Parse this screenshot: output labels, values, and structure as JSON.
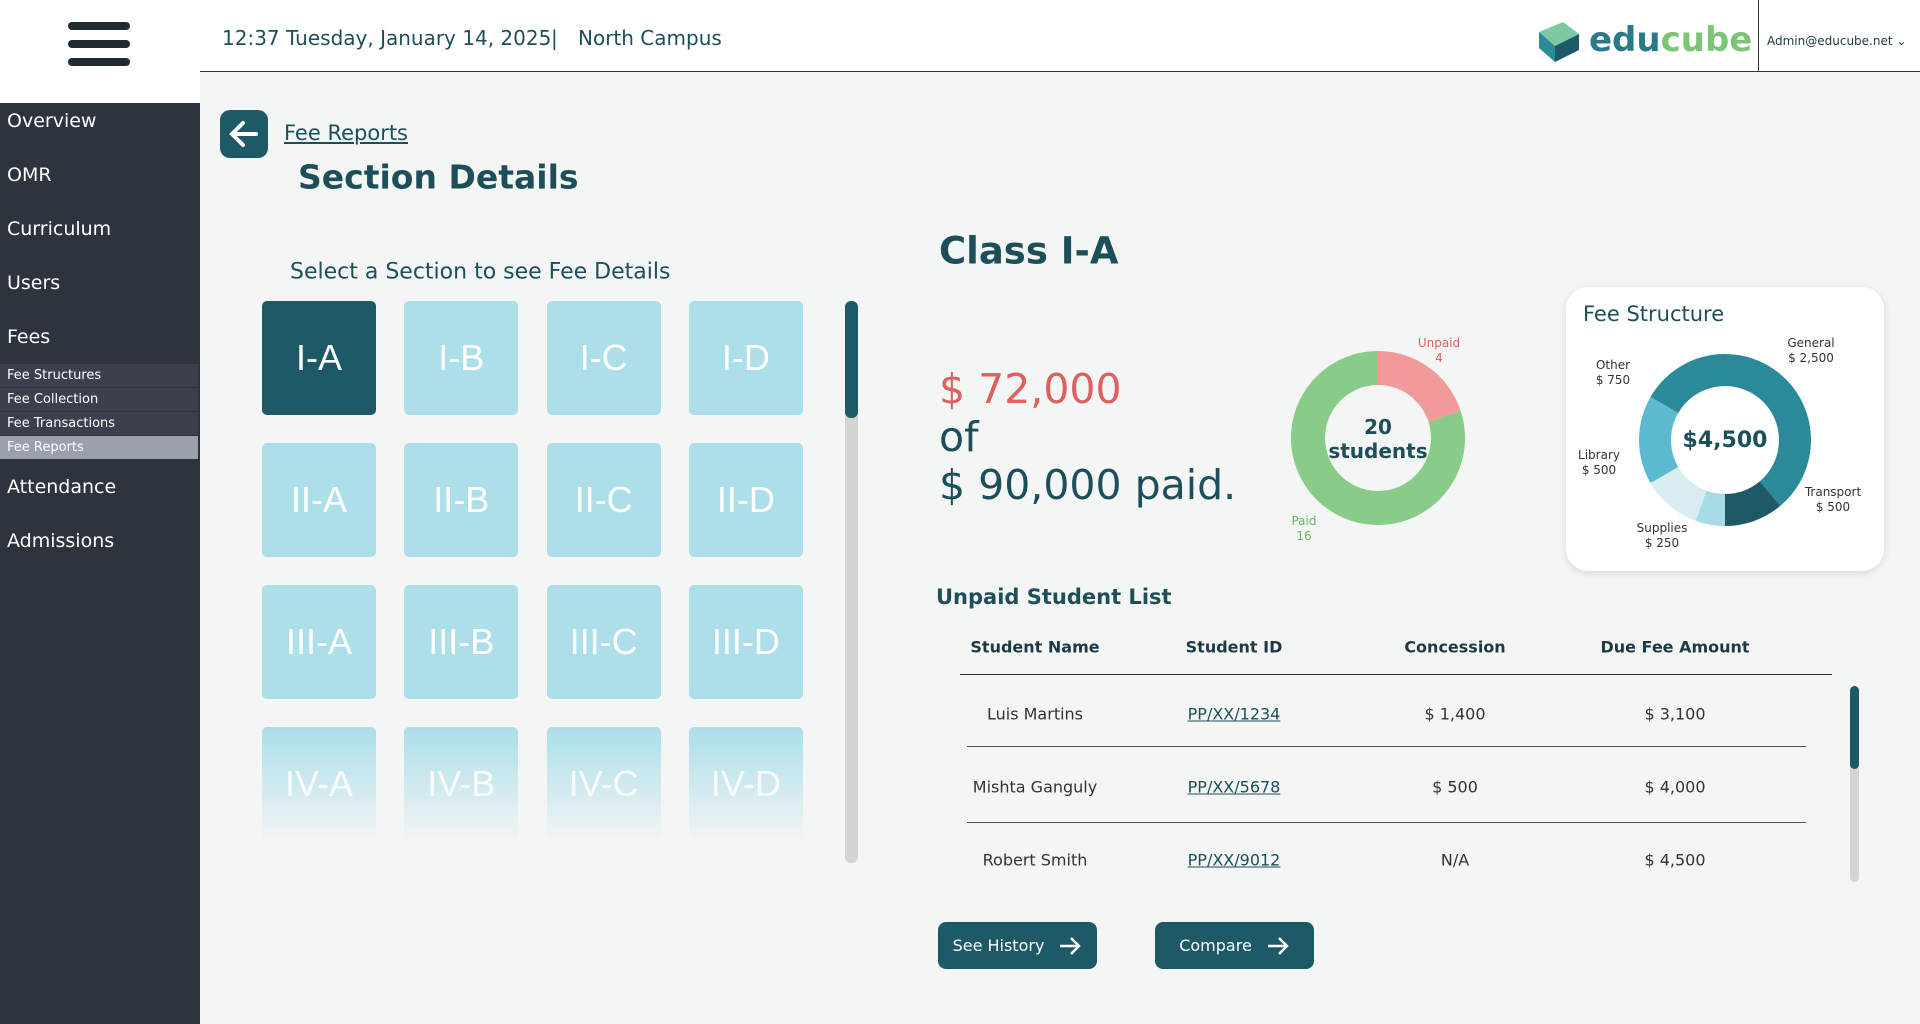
{
  "header": {
    "datetime": "12:37 Tuesday, January 14, 2025",
    "campus": "North Campus",
    "logo_part1": "edu",
    "logo_part2": "cube",
    "user": "Admin@educube.net"
  },
  "sidebar": {
    "items": [
      "Overview",
      "OMR",
      "Curriculum",
      "Users",
      "Fees"
    ],
    "sub_items": [
      "Fee Structures",
      "Fee Collection",
      "Fee Transactions",
      "Fee Reports"
    ],
    "items_after": [
      "Attendance",
      "Admissions"
    ]
  },
  "breadcrumb": "Fee Reports",
  "page_title": "Section Details",
  "section_prompt": "Select a Section to see Fee Details",
  "sections": [
    [
      "I-A",
      "I-B",
      "I-C",
      "I-D"
    ],
    [
      "II-A",
      "II-B",
      "II-C",
      "II-D"
    ],
    [
      "III-A",
      "III-B",
      "III-C",
      "III-D"
    ],
    [
      "IV-A",
      "IV-B",
      "IV-C",
      "IV-D"
    ]
  ],
  "class_title": "Class I-A",
  "paid_amount": "$ 72,000",
  "paid_of": "of",
  "total_amount": "$ 90,000 paid.",
  "status_chart": {
    "type": "pie",
    "center_value": 20,
    "center_unit": "students",
    "segments": [
      {
        "name": "Unpaid",
        "value": 4,
        "color": "#f09a9a"
      },
      {
        "name": "Paid",
        "value": 16,
        "color": "#88cc88"
      }
    ]
  },
  "fee_chart": {
    "type": "pie",
    "title": "Fee Structure",
    "center_label": "$4,500",
    "segments": [
      {
        "name": "General",
        "value": 2500,
        "label": "$ 2,500",
        "color": "#2a8a9a"
      },
      {
        "name": "Transport",
        "value": 500,
        "label": "$ 500",
        "color": "#1d5a66"
      },
      {
        "name": "Supplies",
        "value": 250,
        "label": "$ 250",
        "color": "#a8dbe8"
      },
      {
        "name": "Library",
        "value": 500,
        "label": "$ 500",
        "color": "#d8ecf2"
      },
      {
        "name": "Other",
        "value": 750,
        "label": "$ 750",
        "color": "#5bbad0"
      }
    ]
  },
  "unpaid_list": {
    "title": "Unpaid Student List",
    "columns": [
      "Student Name",
      "Student ID",
      "Concession",
      "Due Fee Amount"
    ],
    "rows": [
      [
        "Luis Martins",
        "PP/XX/1234",
        "$ 1,400",
        "$ 3,100"
      ],
      [
        "Mishta Ganguly",
        "PP/XX/5678",
        "$ 500",
        "$ 4,000"
      ],
      [
        "Robert Smith",
        "PP/XX/9012",
        "N/A",
        "$ 4,500"
      ]
    ]
  },
  "buttons": [
    "See History",
    "Compare"
  ]
}
